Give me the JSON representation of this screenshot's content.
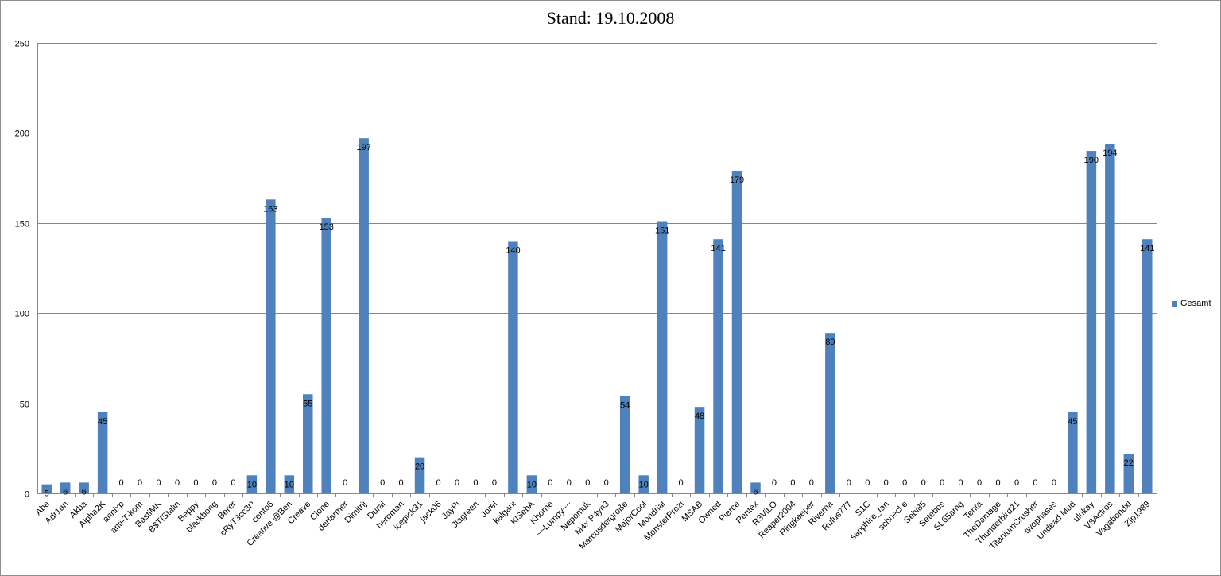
{
  "colors": {
    "bar": "#4f81bd",
    "grid": "#878787",
    "axis": "#878787"
  },
  "chart_data": {
    "type": "bar",
    "title": "Stand: 19.10.2008",
    "xlabel": "",
    "ylabel": "",
    "ylim": [
      0,
      250
    ],
    "yticks": [
      "0",
      "50",
      "100",
      "150",
      "200",
      "250"
    ],
    "grid": true,
    "legend_position": "right",
    "categories": [
      "Abe",
      "Adr1an",
      "Akba",
      "Alpha2K",
      "annixp",
      "anti-T-kom",
      "BastiMK",
      "B$TIStalin",
      "Beppy",
      "blackbong",
      "Berer",
      "cRyT3cc3r³",
      "cento6",
      "Creative @Ben",
      "Creave",
      "Clone",
      "derfarmer",
      "Dimitrij",
      "Dural",
      "heroman",
      "icepick31",
      "jack06",
      "JayPi",
      "Jlagreen",
      "Jorel",
      "kalgani",
      "KlSebA",
      "Khorne",
      "~~Lumpy~~",
      "Nepomuk",
      "M4x P4yn3",
      "Marcusdergroße",
      "MajorCool",
      "Mondrial",
      "MonsterProzi",
      "MSAB",
      "Owned",
      "Pierce",
      "Pentex",
      "R3ViLO",
      "Reaper2004",
      "Ringkeeper",
      "Riverna",
      "Rufus777",
      "S1C",
      "sapphire_fan",
      "schnecke",
      "Sebi85",
      "Setebos",
      "SL65amg",
      "Tenta",
      "TheDamage",
      "Thunderbird21",
      "TitaniumCrusher",
      "twophases",
      "Undead Mud",
      "ulukay",
      "V8Actros",
      "Vagabondxl",
      "Zip1989"
    ],
    "series": [
      {
        "name": "Gesamt",
        "values": [
          5,
          6,
          6,
          45,
          0,
          0,
          0,
          0,
          0,
          0,
          0,
          10,
          163,
          10,
          55,
          153,
          0,
          197,
          0,
          0,
          20,
          0,
          0,
          0,
          0,
          140,
          10,
          0,
          0,
          0,
          0,
          54,
          10,
          151,
          0,
          48,
          141,
          179,
          6,
          0,
          0,
          0,
          89,
          0,
          0,
          0,
          0,
          0,
          0,
          0,
          0,
          0,
          0,
          0,
          0,
          45,
          190,
          194,
          22,
          141
        ]
      }
    ]
  }
}
